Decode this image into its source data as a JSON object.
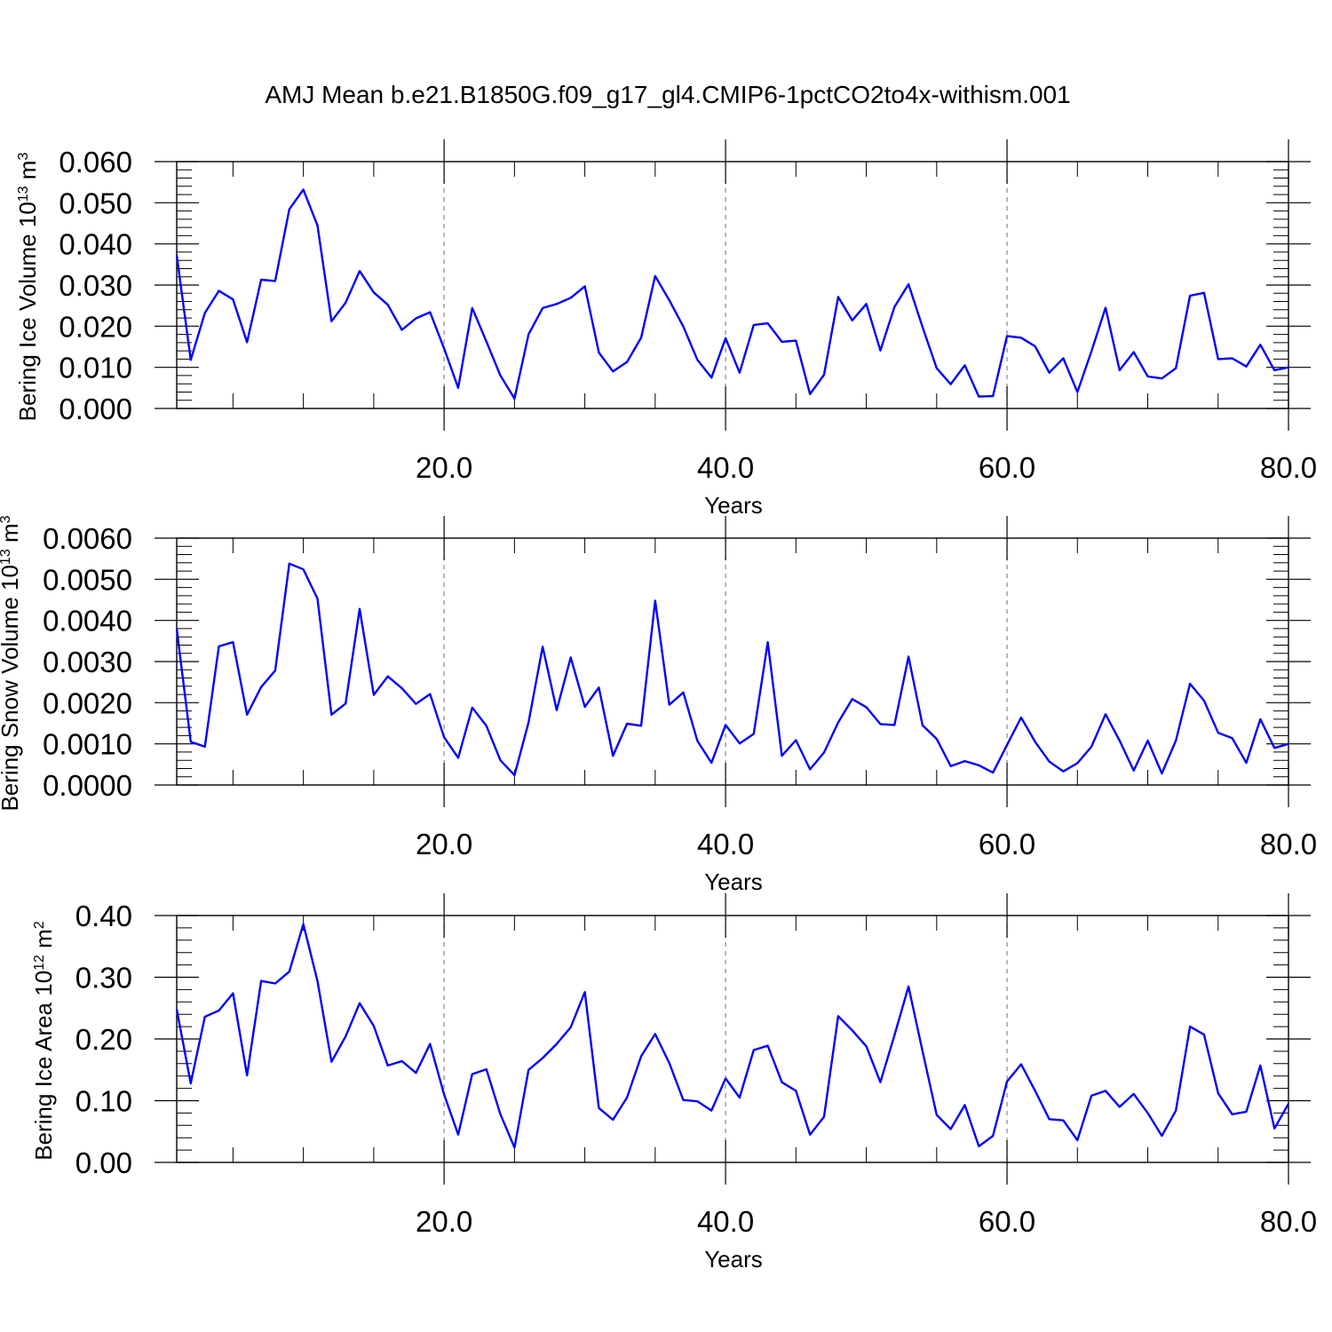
{
  "title": "AMJ Mean b.e21.B1850G.f09_g17_gl4.CMIP6-1pctCO2to4x-withism.001",
  "colors": {
    "series": "#0000ff",
    "axis": "#000000",
    "grid": "#888888"
  },
  "chart_data": [
    {
      "type": "line",
      "ylabel": {
        "prefix": "Bering Ice Volume 10",
        "exponent": "13",
        "unit": " m",
        "unit_exponent": "3"
      },
      "xlabel": "Years",
      "xlim": [
        1,
        80
      ],
      "ylim": [
        0,
        0.06
      ],
      "xticks": [
        20,
        40,
        60,
        80
      ],
      "xtick_labels": [
        "20.0",
        "40.0",
        "60.0",
        "80.0"
      ],
      "yticks": [
        0,
        0.01,
        0.02,
        0.03,
        0.04,
        0.05,
        0.06
      ],
      "ytick_labels": [
        "0.000",
        "0.010",
        "0.020",
        "0.030",
        "0.040",
        "0.050",
        "0.060"
      ],
      "grid": "dashed vertical at x ticks",
      "x_start": 1,
      "series": [
        {
          "values": [
            0.0373,
            0.0118,
            0.0232,
            0.0286,
            0.0265,
            0.0161,
            0.0313,
            0.031,
            0.0484,
            0.0532,
            0.0445,
            0.0212,
            0.0257,
            0.0334,
            0.0282,
            0.0252,
            0.0191,
            0.0219,
            0.0234,
            0.0146,
            0.005,
            0.0244,
            0.0163,
            0.008,
            0.0024,
            0.018,
            0.0244,
            0.0254,
            0.0269,
            0.0297,
            0.0136,
            0.009,
            0.0113,
            0.0172,
            0.0322,
            0.0263,
            0.0199,
            0.0118,
            0.0075,
            0.0171,
            0.0087,
            0.0203,
            0.0207,
            0.0162,
            0.0165,
            0.0035,
            0.0082,
            0.0271,
            0.0214,
            0.0254,
            0.0141,
            0.0247,
            0.0302,
            0.0198,
            0.0098,
            0.0059,
            0.0105,
            0.0029,
            0.003,
            0.0176,
            0.0172,
            0.0151,
            0.0087,
            0.0122,
            0.004,
            0.0139,
            0.0245,
            0.0093,
            0.0137,
            0.0078,
            0.0073,
            0.0098,
            0.0274,
            0.0281,
            0.012,
            0.0122,
            0.0102,
            0.0155,
            0.0093,
            0.01
          ]
        }
      ]
    },
    {
      "type": "line",
      "ylabel": {
        "prefix": "Bering Snow Volume 10",
        "exponent": "13",
        "unit": " m",
        "unit_exponent": "3"
      },
      "xlabel": "Years",
      "xlim": [
        1,
        80
      ],
      "ylim": [
        0,
        0.006
      ],
      "xticks": [
        20,
        40,
        60,
        80
      ],
      "xtick_labels": [
        "20.0",
        "40.0",
        "60.0",
        "80.0"
      ],
      "yticks": [
        0,
        0.001,
        0.002,
        0.003,
        0.004,
        0.005,
        0.006
      ],
      "ytick_labels": [
        "0.0000",
        "0.0010",
        "0.0020",
        "0.0030",
        "0.0040",
        "0.0050",
        "0.0060"
      ],
      "grid": "dashed vertical at x ticks",
      "x_start": 1,
      "series": [
        {
          "values": [
            0.0038,
            0.00105,
            0.00093,
            0.00337,
            0.00347,
            0.00171,
            0.00238,
            0.00278,
            0.00538,
            0.00524,
            0.00453,
            0.00171,
            0.00198,
            0.00428,
            0.00219,
            0.00264,
            0.00235,
            0.00197,
            0.00221,
            0.00116,
            0.00066,
            0.00188,
            0.00144,
            0.0006,
            0.00024,
            0.00152,
            0.00336,
            0.00182,
            0.0031,
            0.0019,
            0.00237,
            0.00071,
            0.00149,
            0.00144,
            0.00448,
            0.00195,
            0.00225,
            0.00107,
            0.00054,
            0.00146,
            0.00101,
            0.00124,
            0.00347,
            0.00071,
            0.00109,
            0.00038,
            0.00079,
            0.00152,
            0.00209,
            0.00189,
            0.00148,
            0.00146,
            0.00312,
            0.00145,
            0.00112,
            0.00046,
            0.00058,
            0.00048,
            0.0003,
            0.00097,
            0.00164,
            0.00105,
            0.00057,
            0.00033,
            0.00053,
            0.00093,
            0.00172,
            0.00108,
            0.00035,
            0.00108,
            0.00028,
            0.00108,
            0.00246,
            0.00205,
            0.00127,
            0.00114,
            0.00054,
            0.0016,
            0.0009,
            0.001
          ]
        }
      ]
    },
    {
      "type": "line",
      "ylabel": {
        "prefix": "Bering Ice Area 10",
        "exponent": "12",
        "unit": " m",
        "unit_exponent": "2"
      },
      "xlabel": "Years",
      "xlim": [
        1,
        80
      ],
      "ylim": [
        0,
        0.4
      ],
      "xticks": [
        20,
        40,
        60,
        80
      ],
      "xtick_labels": [
        "20.0",
        "40.0",
        "60.0",
        "80.0"
      ],
      "yticks": [
        0,
        0.1,
        0.2,
        0.3,
        0.4
      ],
      "ytick_labels": [
        "0.00",
        "0.10",
        "0.20",
        "0.30",
        "0.40"
      ],
      "grid": "dashed vertical at x ticks",
      "x_start": 1,
      "series": [
        {
          "values": [
            0.248,
            0.128,
            0.236,
            0.246,
            0.274,
            0.141,
            0.294,
            0.29,
            0.309,
            0.386,
            0.294,
            0.163,
            0.204,
            0.258,
            0.221,
            0.157,
            0.164,
            0.145,
            0.192,
            0.11,
            0.045,
            0.143,
            0.151,
            0.078,
            0.024,
            0.15,
            0.169,
            0.192,
            0.219,
            0.276,
            0.088,
            0.069,
            0.105,
            0.172,
            0.208,
            0.161,
            0.101,
            0.099,
            0.084,
            0.136,
            0.105,
            0.182,
            0.189,
            0.13,
            0.116,
            0.045,
            0.074,
            0.237,
            0.214,
            0.188,
            0.13,
            0.206,
            0.285,
            0.18,
            0.077,
            0.054,
            0.093,
            0.026,
            0.043,
            0.131,
            0.159,
            0.116,
            0.07,
            0.068,
            0.036,
            0.108,
            0.116,
            0.09,
            0.111,
            0.08,
            0.043,
            0.084,
            0.22,
            0.207,
            0.112,
            0.078,
            0.082,
            0.157,
            0.055,
            0.095
          ]
        }
      ]
    }
  ]
}
